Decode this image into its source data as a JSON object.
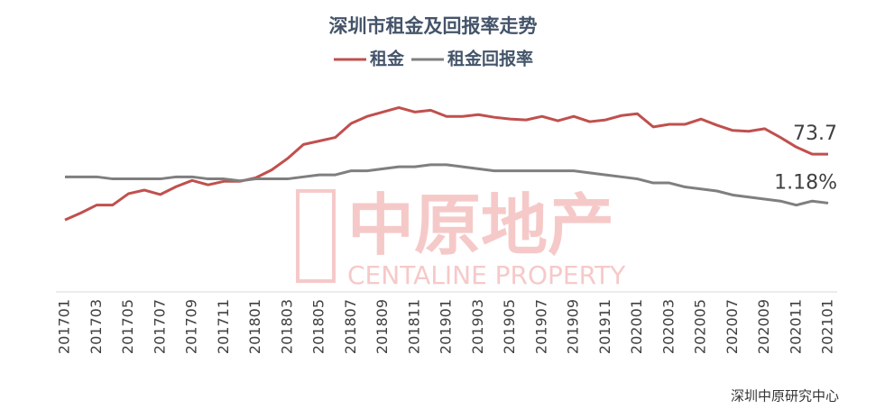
{
  "chart_data": {
    "type": "line",
    "title": "深圳市租金及回报率走势",
    "source": "深圳中原研究中心",
    "watermark": [
      "中原地产",
      "CENTALINE PROPERTY"
    ],
    "categories": [
      "201701",
      null,
      "201703",
      null,
      "201705",
      null,
      "201707",
      null,
      "201709",
      null,
      "201711",
      null,
      "201801",
      null,
      "201803",
      null,
      "201805",
      null,
      "201807",
      null,
      "201809",
      null,
      "201811",
      null,
      "201901",
      null,
      "201903",
      null,
      "201905",
      null,
      "201907",
      null,
      "201909",
      null,
      "201911",
      null,
      "202001",
      null,
      "202003",
      null,
      "202005",
      null,
      "202007",
      null,
      "202009",
      null,
      "202011",
      null,
      "202101"
    ],
    "ylim": [
      58,
      81
    ],
    "y2lim": [
      0.74,
      1.74
    ],
    "series": [
      {
        "name": "租金",
        "color": "#c0504d",
        "values": [
          66.2,
          67.0,
          67.9,
          67.9,
          69.2,
          69.6,
          69.1,
          70.0,
          70.7,
          70.2,
          70.6,
          70.6,
          71.0,
          71.9,
          73.2,
          74.8,
          75.2,
          75.6,
          77.2,
          78.0,
          78.5,
          79.0,
          78.5,
          78.7,
          78.0,
          78.0,
          78.2,
          77.9,
          77.7,
          77.6,
          78.0,
          77.5,
          78.0,
          77.4,
          77.6,
          78.1,
          78.3,
          76.8,
          77.1,
          77.1,
          77.7,
          77.0,
          76.4,
          76.3,
          76.6,
          75.6,
          74.5,
          73.7,
          73.7
        ]
      },
      {
        "name": "租金回报率",
        "color": "#7f7f7f",
        "axis": "y2",
        "values": [
          1.31,
          1.31,
          1.31,
          1.3,
          1.3,
          1.3,
          1.3,
          1.31,
          1.31,
          1.3,
          1.3,
          1.29,
          1.3,
          1.3,
          1.3,
          1.31,
          1.32,
          1.32,
          1.34,
          1.34,
          1.35,
          1.36,
          1.36,
          1.37,
          1.37,
          1.36,
          1.35,
          1.34,
          1.34,
          1.34,
          1.34,
          1.34,
          1.34,
          1.33,
          1.32,
          1.31,
          1.3,
          1.28,
          1.28,
          1.26,
          1.25,
          1.24,
          1.22,
          1.21,
          1.2,
          1.19,
          1.17,
          1.19,
          1.18
        ],
        "value_labels": [
          null,
          null,
          null,
          null,
          null,
          null,
          null,
          null,
          null,
          null,
          null,
          null,
          null,
          null,
          null,
          null,
          null,
          null,
          null,
          null,
          null,
          null,
          null,
          null,
          null,
          null,
          null,
          null,
          null,
          null,
          null,
          null,
          null,
          null,
          null,
          null,
          null,
          null,
          null,
          null,
          null,
          null,
          null,
          null,
          null,
          null,
          null,
          null,
          "1.18%"
        ]
      }
    ]
  }
}
